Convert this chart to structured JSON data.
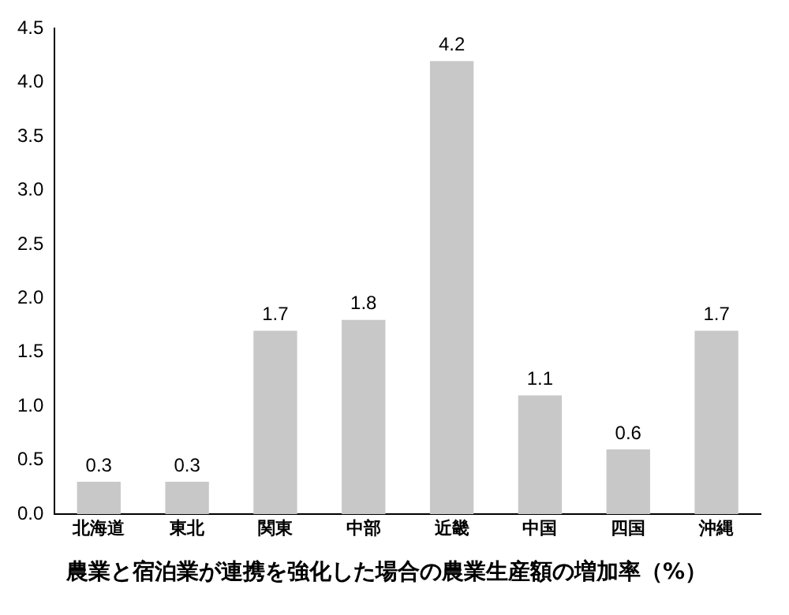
{
  "chart_data": {
    "type": "bar",
    "title": "農業と宿泊業が連携を強化した場合の農業生産額の増加率（%）",
    "categories": [
      "北海道",
      "東北",
      "関東",
      "中部",
      "近畿",
      "中国",
      "四国",
      "沖縄"
    ],
    "values": [
      0.3,
      0.3,
      1.7,
      1.8,
      4.2,
      1.1,
      0.6,
      1.7
    ],
    "color": "#c8c8c8",
    "ylim": [
      0,
      4.5
    ],
    "yticks": [
      {
        "value": 0,
        "label": "0.0"
      },
      0.5,
      {
        "value": 1,
        "label": "1.0"
      },
      1.5,
      {
        "value": 2,
        "label": "2.0"
      },
      2.5,
      {
        "value": 3,
        "label": "3.0"
      },
      3.5,
      {
        "value": 4,
        "label": "4.0"
      },
      4.5
    ],
    "grid": false,
    "legend": false,
    "data_labels": true
  }
}
